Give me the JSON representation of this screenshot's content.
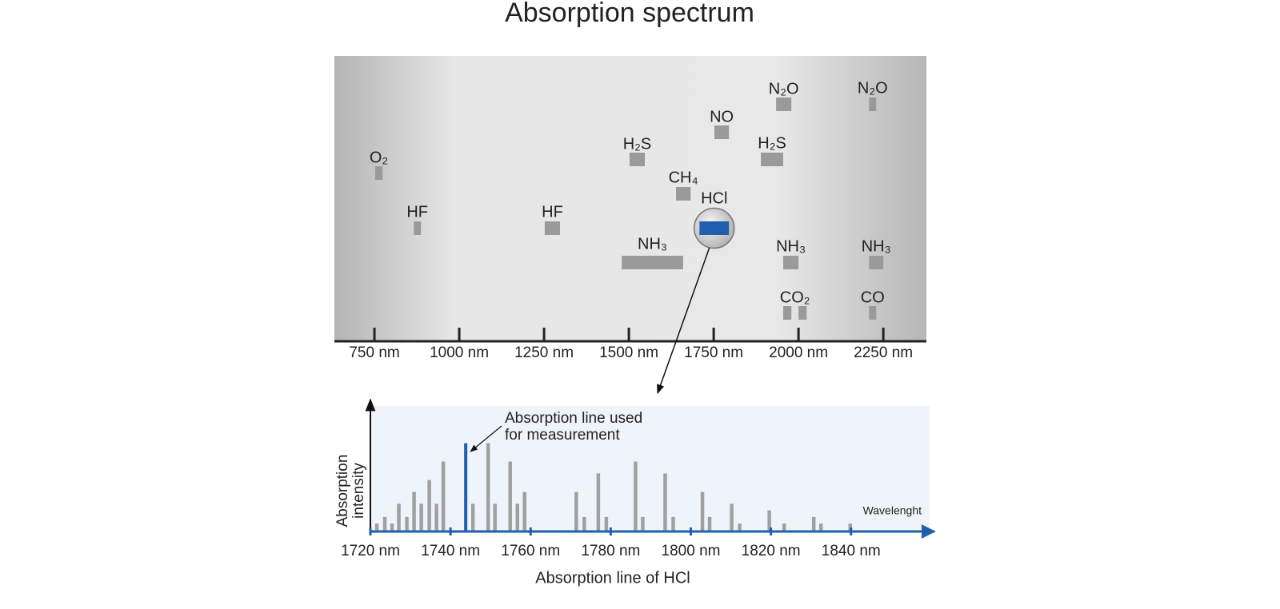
{
  "chart_data": [
    {
      "type": "bands",
      "title": "Absorption spectrum",
      "color": "#9a9a9a",
      "highlight": 7,
      "highlight_color": "#1f5fae",
      "xlim": [
        632,
        2377
      ],
      "xticks": [
        {
          "value": 750,
          "label": "750 nm"
        },
        {
          "value": 1000,
          "label": "1000 nm"
        },
        {
          "value": 1250,
          "label": "1250 nm"
        },
        {
          "value": 1500,
          "label": "1500 nm"
        },
        {
          "value": 1750,
          "label": "1750 nm"
        },
        {
          "value": 2000,
          "label": "2000 nm"
        },
        {
          "value": 2250,
          "label": "2250 nm"
        }
      ],
      "bands": [
        {
          "label": "O₂",
          "ranges": [
            [
              752,
              774
            ]
          ]
        },
        {
          "label": "HF",
          "ranges": [
            [
              866,
              887
            ]
          ]
        },
        {
          "label": "HF",
          "ranges": [
            [
              1252,
              1297
            ]
          ]
        },
        {
          "label": "H₂S",
          "ranges": [
            [
              1502,
              1547
            ]
          ]
        },
        {
          "label": "NH₃",
          "ranges": [
            [
              1479,
              1660
            ]
          ]
        },
        {
          "label": "CH₄",
          "ranges": [
            [
              1639,
              1682
            ]
          ]
        },
        {
          "label": "NO",
          "ranges": [
            [
              1752,
              1795
            ]
          ]
        },
        {
          "label": "HCl",
          "ranges": [
            [
              1708,
              1795
            ]
          ]
        },
        {
          "label": "N₂O",
          "ranges": [
            [
              1934,
              1979
            ]
          ]
        },
        {
          "label": "H₂S",
          "ranges": [
            [
              1889,
              1955
            ]
          ]
        },
        {
          "label": "NH₃",
          "ranges": [
            [
              1955,
              2000
            ]
          ]
        },
        {
          "label": "CO₂",
          "ranges": [
            [
              1955,
              1979
            ],
            [
              2000,
              2024
            ]
          ]
        },
        {
          "label": "N₂O",
          "ranges": [
            [
              2208,
              2229
            ]
          ]
        },
        {
          "label": "NH₃",
          "ranges": [
            [
              2208,
              2250
            ]
          ]
        },
        {
          "label": "CO",
          "ranges": [
            [
              2208,
              2229
            ]
          ]
        }
      ]
    },
    {
      "type": "stem",
      "color": "#a0a0a0",
      "highlight": 10,
      "highlight_color": "#1f5fae",
      "xlabel": "Absorption line of HCl",
      "axis_label": "Wavelenght",
      "ylabel": [
        "Absorption",
        "intensity"
      ],
      "annotation": [
        "Absorption line used",
        "for measurement"
      ],
      "xlim": [
        1720,
        1860
      ],
      "ylim": [
        0,
        100
      ],
      "xticks": [
        {
          "value": 1720,
          "label": "1720 nm"
        },
        {
          "value": 1740,
          "label": "1740 nm"
        },
        {
          "value": 1760,
          "label": "1760 nm"
        },
        {
          "value": 1780,
          "label": "1780 nm"
        },
        {
          "value": 1800,
          "label": "1800 nm"
        },
        {
          "value": 1820,
          "label": "1820 nm"
        },
        {
          "value": 1840,
          "label": "1840 nm"
        }
      ],
      "x": [
        1721.6,
        1723.6,
        1725.4,
        1727.1,
        1729.1,
        1730.9,
        1732.7,
        1734.7,
        1736.5,
        1738.2,
        1743.8,
        1745.6,
        1749.4,
        1751.1,
        1754.9,
        1756.7,
        1758.5,
        1771.4,
        1773.4,
        1776.9,
        1778.9,
        1786.2,
        1788.0,
        1793.6,
        1795.6,
        1802.9,
        1804.7,
        1810.2,
        1812.2,
        1819.6,
        1823.3,
        1830.7,
        1832.5,
        1839.8
      ],
      "values": [
        6,
        11,
        6,
        21,
        11,
        30,
        21,
        39,
        21,
        53,
        67,
        21,
        67,
        21,
        53,
        21,
        30,
        30,
        11,
        44,
        11,
        53,
        11,
        44,
        11,
        30,
        11,
        21,
        6,
        16,
        6,
        11,
        6,
        6
      ]
    }
  ]
}
